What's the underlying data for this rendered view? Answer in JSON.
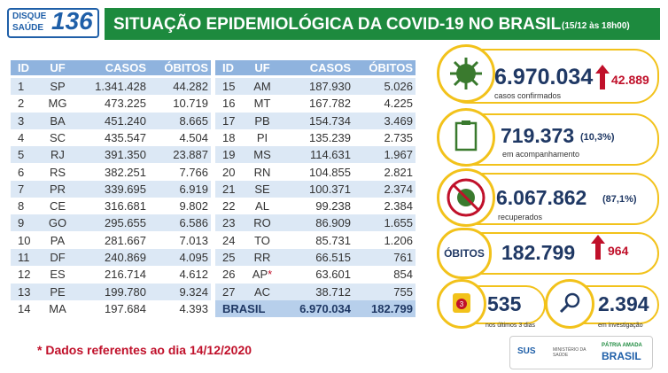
{
  "logo": {
    "line1": "DISQUE",
    "line2": "SAÚDE",
    "number": "136"
  },
  "header": {
    "title": "SITUAÇÃO EPIDEMIOLÓGICA DA COVID-19 NO BRASIL",
    "timestamp": "(15/12 às 18h00)"
  },
  "tables": [
    {
      "header": [
        "ID",
        "UF",
        "CASOS",
        "ÓBITOS"
      ],
      "rows": [
        [
          "1",
          "SP",
          "1.341.428",
          "44.282"
        ],
        [
          "2",
          "MG",
          "473.225",
          "10.719"
        ],
        [
          "3",
          "BA",
          "451.240",
          "8.665"
        ],
        [
          "4",
          "SC",
          "435.547",
          "4.504"
        ],
        [
          "5",
          "RJ",
          "391.350",
          "23.887"
        ],
        [
          "6",
          "RS",
          "382.251",
          "7.766"
        ],
        [
          "7",
          "PR",
          "339.695",
          "6.919"
        ],
        [
          "8",
          "CE",
          "316.681",
          "9.802"
        ],
        [
          "9",
          "GO",
          "295.655",
          "6.586"
        ],
        [
          "10",
          "PA",
          "281.667",
          "7.013"
        ],
        [
          "11",
          "DF",
          "240.869",
          "4.095"
        ],
        [
          "12",
          "ES",
          "216.714",
          "4.612"
        ],
        [
          "13",
          "PE",
          "199.780",
          "9.324"
        ],
        [
          "14",
          "MA",
          "197.684",
          "4.393"
        ]
      ]
    },
    {
      "header": [
        "ID",
        "UF",
        "CASOS",
        "ÓBITOS"
      ],
      "rows": [
        [
          "15",
          "AM",
          "187.930",
          "5.026"
        ],
        [
          "16",
          "MT",
          "167.782",
          "4.225"
        ],
        [
          "17",
          "PB",
          "154.734",
          "3.469"
        ],
        [
          "18",
          "PI",
          "135.239",
          "2.735"
        ],
        [
          "19",
          "MS",
          "114.631",
          "1.967"
        ],
        [
          "20",
          "RN",
          "104.855",
          "2.821"
        ],
        [
          "21",
          "SE",
          "100.371",
          "2.374"
        ],
        [
          "22",
          "AL",
          "99.238",
          "2.384"
        ],
        [
          "23",
          "RO",
          "86.909",
          "1.655"
        ],
        [
          "24",
          "TO",
          "85.731",
          "1.206"
        ],
        [
          "25",
          "RR",
          "66.515",
          "761"
        ],
        [
          "26",
          "AP",
          "63.601",
          "854"
        ],
        [
          "27",
          "AC",
          "38.712",
          "755"
        ]
      ],
      "footnote_mark": {
        "row": 11,
        "mark": "*"
      },
      "total": {
        "label": "BRASIL",
        "casos": "6.970.034",
        "obitos": "182.799"
      }
    }
  ],
  "cards": {
    "confirmed": {
      "value": "6.970.034",
      "change": "42.889",
      "label": "casos confirmados"
    },
    "monitoring": {
      "value": "719.373",
      "percent": "(10,3%)",
      "label": "em acompanhamento"
    },
    "recovered": {
      "value": "6.067.862",
      "percent": "(87,1%)",
      "label": "recuperados"
    },
    "deaths": {
      "title": "ÓBITOS",
      "value": "182.799",
      "change": "964"
    },
    "recent": {
      "icon": "3",
      "value": "535",
      "label": "nos últimos 3 dias"
    },
    "investigation": {
      "value": "2.394",
      "label": "em investigação"
    }
  },
  "footnote": "* Dados referentes ao dia 14/12/2020",
  "logos": {
    "sus": "SUS",
    "ministry": "MINISTÉRIO DA SAÚDE",
    "gov_line1": "PÁTRIA AMADA",
    "gov_line2": "BRASIL"
  }
}
